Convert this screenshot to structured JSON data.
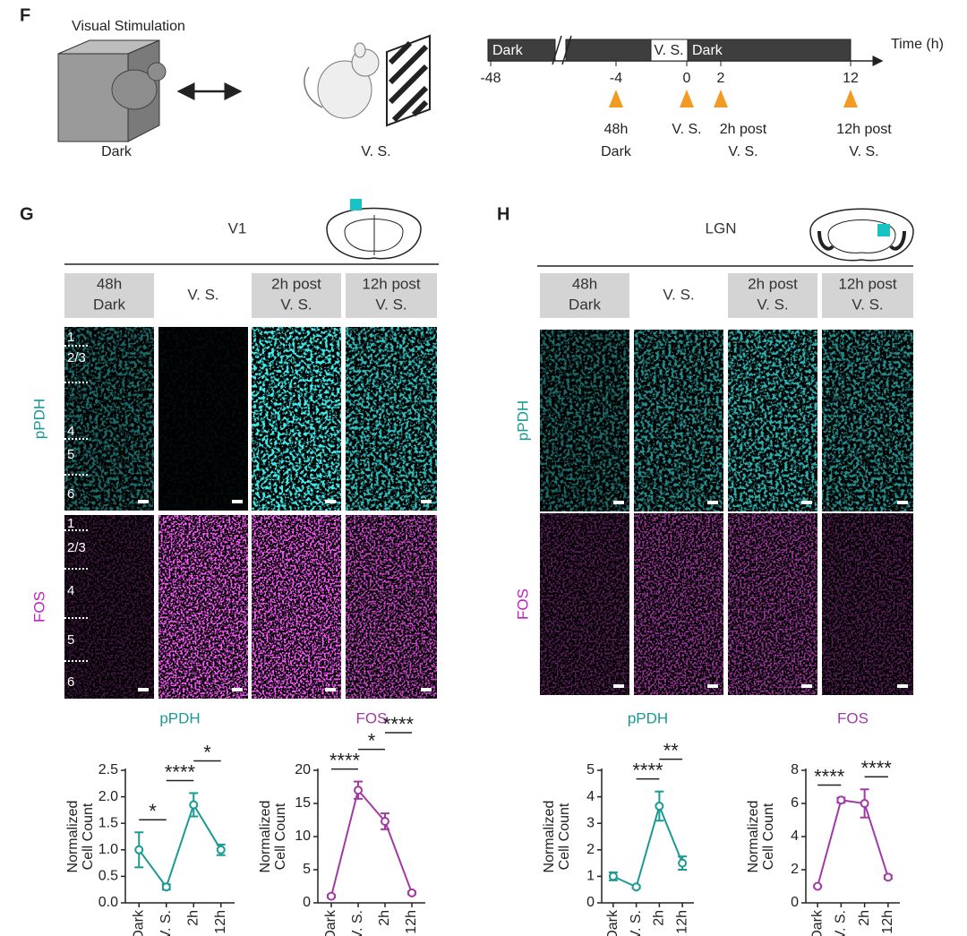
{
  "panel_f": {
    "label": "F",
    "title": "Visual Stimulation",
    "conditions": [
      "Dark",
      "V. S."
    ],
    "timeline": {
      "segments": [
        "Dark",
        "V. S.",
        "Dark"
      ],
      "axis_label": "Time (h)",
      "ticks": [
        -48,
        -4,
        0,
        2,
        12
      ],
      "events": [
        [
          "48h",
          "Dark"
        ],
        [
          "V. S."
        ],
        [
          "2h post",
          "V. S."
        ],
        [
          "12h post",
          "V. S."
        ]
      ]
    }
  },
  "panel_g": {
    "label": "G",
    "region": "V1",
    "conditions": [
      [
        "48h",
        "Dark"
      ],
      [
        "V. S."
      ],
      [
        "2h post",
        "V. S."
      ],
      [
        "12h post",
        "V. S."
      ]
    ],
    "rows": [
      "pPDH",
      "FOS"
    ],
    "layers": [
      "1",
      "2/3",
      "4",
      "5",
      "6"
    ]
  },
  "panel_h": {
    "label": "H",
    "region": "LGN",
    "conditions": [
      [
        "48h",
        "Dark"
      ],
      [
        "V. S."
      ],
      [
        "2h post",
        "V. S."
      ],
      [
        "12h post",
        "V. S."
      ]
    ],
    "rows": [
      "pPDH",
      "FOS"
    ]
  },
  "chart_data": [
    {
      "type": "line",
      "title": "pPDH",
      "ylabel": [
        "Normalized",
        "Cell Count"
      ],
      "categories": [
        "Dark",
        "V. S.",
        "2h",
        "12h"
      ],
      "series": [
        {
          "color": "#1b9a94",
          "values": [
            1.0,
            0.3,
            1.85,
            1.0
          ],
          "errors": [
            0.33,
            0.05,
            0.22,
            0.1
          ]
        }
      ],
      "ylim": [
        0,
        2.5
      ],
      "yticks": [
        {
          "value": 0,
          "label": "0.0"
        },
        0.5,
        {
          "value": 1,
          "label": "1.0"
        },
        1.5,
        {
          "value": 2,
          "label": "2.0"
        },
        2.5
      ],
      "annotations": [
        {
          "text": "*",
          "between": [
            "Dark",
            "V. S."
          ]
        },
        {
          "text": "****",
          "between": [
            "V. S.",
            "2h"
          ]
        },
        {
          "text": "*",
          "between": [
            "2h",
            "12h"
          ]
        }
      ]
    },
    {
      "type": "line",
      "title": "FOS",
      "ylabel": [
        "Normalized",
        "Cell Count"
      ],
      "categories": [
        "Dark",
        "V. S.",
        "2h",
        "12h"
      ],
      "series": [
        {
          "color": "#a23aa6",
          "values": [
            1.0,
            17.0,
            12.3,
            1.5
          ],
          "errors": [
            0.2,
            1.3,
            1.2,
            0.2
          ]
        }
      ],
      "ylim": [
        0,
        20
      ],
      "yticks": [
        0,
        5,
        10,
        15,
        20
      ],
      "annotations": [
        {
          "text": "****",
          "between": [
            "Dark",
            "V. S."
          ]
        },
        {
          "text": "*",
          "between": [
            "V. S.",
            "2h"
          ]
        },
        {
          "text": "****",
          "between": [
            "2h",
            "12h"
          ]
        }
      ]
    },
    {
      "type": "line",
      "title": "pPDH",
      "ylabel": [
        "Normalized",
        "Cell Count"
      ],
      "categories": [
        "Dark",
        "V. S.",
        "2h",
        "12h"
      ],
      "series": [
        {
          "color": "#1b9a94",
          "values": [
            1.0,
            0.6,
            3.65,
            1.5
          ],
          "errors": [
            0.15,
            0.05,
            0.55,
            0.25
          ]
        }
      ],
      "ylim": [
        0,
        5
      ],
      "yticks": [
        0,
        1,
        2,
        3,
        4,
        5
      ],
      "annotations": [
        {
          "text": "****",
          "between": [
            "V. S.",
            "2h"
          ]
        },
        {
          "text": "**",
          "between": [
            "2h",
            "12h"
          ]
        }
      ]
    },
    {
      "type": "line",
      "title": "FOS",
      "ylabel": [
        "Normalized",
        "Cell Count"
      ],
      "categories": [
        "Dark",
        "V. S.",
        "2h",
        "12h"
      ],
      "series": [
        {
          "color": "#a23aa6",
          "values": [
            1.0,
            6.2,
            6.0,
            1.55
          ],
          "errors": [
            0.05,
            0.15,
            0.85,
            0.1
          ]
        }
      ],
      "ylim": [
        0,
        8
      ],
      "yticks": [
        0,
        2,
        4,
        6,
        8
      ],
      "annotations": [
        {
          "text": "****",
          "between": [
            "Dark",
            "V. S."
          ]
        },
        {
          "text": "****",
          "between": [
            "2h",
            "12h"
          ]
        }
      ]
    }
  ]
}
